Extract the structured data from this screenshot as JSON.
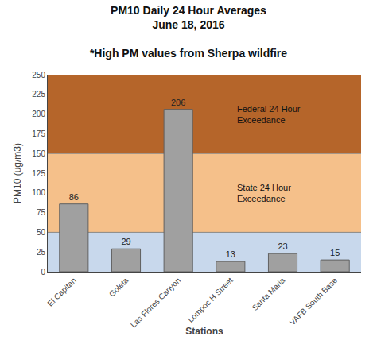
{
  "chart_data": {
    "type": "bar",
    "title": "PM10 Daily 24 Hour Averages\nJune 18, 2016",
    "subtitle": "*High PM values from Sherpa wildfire",
    "categories": [
      "El Capitan",
      "Goleta",
      "Las Flores Canyon",
      "Lompoc H Street",
      "Santa Maria",
      "VAFB South Base"
    ],
    "values": [
      86,
      29,
      206,
      13,
      23,
      15
    ],
    "color": "#a0a0a0",
    "data_labels": true,
    "xlabel": "Stations",
    "ylabel": "PM10 (ug/m3)",
    "ylim": [
      0,
      250
    ],
    "yticks": [
      0,
      25,
      50,
      75,
      100,
      125,
      150,
      175,
      200,
      225,
      250
    ],
    "grid": false,
    "zones": [
      {
        "from": 0,
        "to": 50,
        "color": "#c8d8ec"
      },
      {
        "from": 50,
        "to": 150,
        "color": "#f5c08a",
        "label": "State 24 Hour\nExceedance"
      },
      {
        "from": 150,
        "to": 250,
        "color": "#b5652a",
        "label": "Federal 24 Hour\nExceedance"
      }
    ]
  }
}
